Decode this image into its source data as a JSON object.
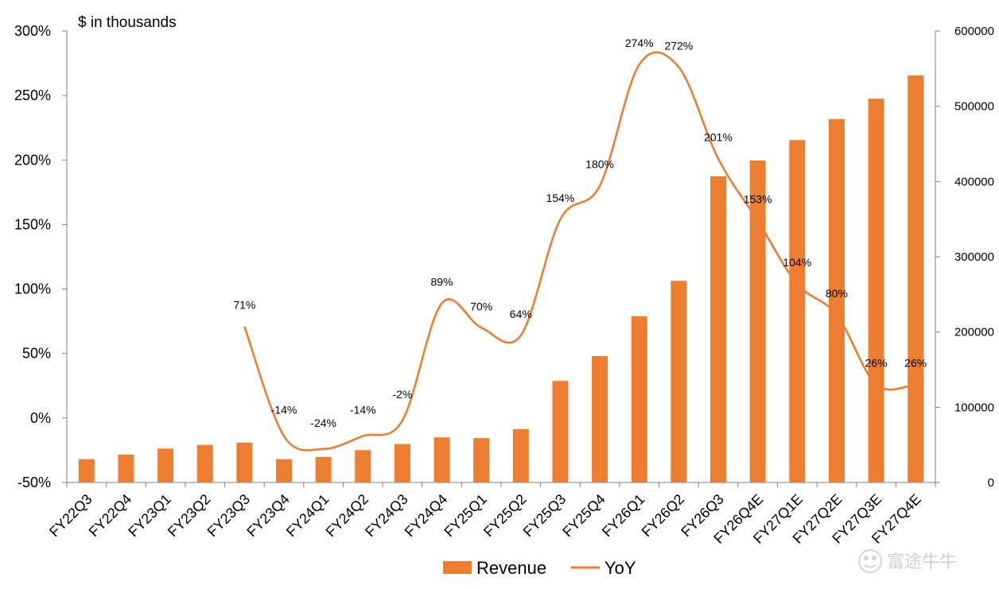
{
  "colors": {
    "bar": "#ED7D31",
    "line": "#ED7D31",
    "axis": "#808080",
    "watermark": "#cfcfcf"
  },
  "watermark": {
    "text": "富途牛牛",
    "icon": "futu-logo-icon"
  },
  "chart_data": {
    "type": "bar",
    "title": "",
    "unit_label": "$ in thousands",
    "categories": [
      "FY22Q3",
      "FY22Q4",
      "FY23Q1",
      "FY23Q2",
      "FY23Q3",
      "FY23Q4",
      "FY24Q1",
      "FY24Q2",
      "FY24Q3",
      "FY24Q4",
      "FY25Q1",
      "FY25Q2",
      "FY25Q3",
      "FY25Q4",
      "FY26Q1",
      "FY26Q2",
      "FY26Q3",
      "FY26Q4E",
      "FY27Q1E",
      "FY27Q2E",
      "FY27Q3E",
      "FY27Q4E"
    ],
    "series": [
      {
        "name": "Revenue",
        "type": "bar",
        "axis": "right",
        "values": [
          31000,
          37000,
          45000,
          50000,
          53000,
          31000,
          34000,
          43000,
          51000,
          60000,
          59000,
          71000,
          135000,
          168000,
          221000,
          268000,
          407000,
          428000,
          455000,
          483000,
          510000,
          541000
        ]
      },
      {
        "name": "YoY",
        "type": "line",
        "axis": "left",
        "values": [
          null,
          null,
          null,
          null,
          71,
          -14,
          -24,
          -14,
          -2,
          89,
          70,
          64,
          154,
          180,
          274,
          272,
          201,
          153,
          104,
          80,
          26,
          26
        ],
        "labels": [
          null,
          null,
          null,
          null,
          "71%",
          "-14%",
          "-24%",
          "-14%",
          "-2%",
          "89%",
          "70%",
          "64%",
          "154%",
          "180%",
          "274%",
          "272%",
          "201%",
          "153%",
          "104%",
          "80%",
          "26%",
          "26%"
        ]
      }
    ],
    "left_axis": {
      "ticks": [
        "300%",
        "250%",
        "200%",
        "150%",
        "100%",
        "50%",
        "0%",
        "-50%"
      ],
      "values": [
        300,
        250,
        200,
        150,
        100,
        50,
        0,
        -50
      ],
      "ylim": [
        -50,
        300
      ]
    },
    "right_axis": {
      "ticks": [
        "600000",
        "500000",
        "400000",
        "300000",
        "200000",
        "100000",
        "0"
      ],
      "values": [
        600000,
        500000,
        400000,
        300000,
        200000,
        100000,
        0
      ],
      "ylim": [
        0,
        600000
      ]
    },
    "legend": {
      "position": "bottom",
      "items": [
        "Revenue",
        "YoY"
      ]
    },
    "grid": false
  }
}
